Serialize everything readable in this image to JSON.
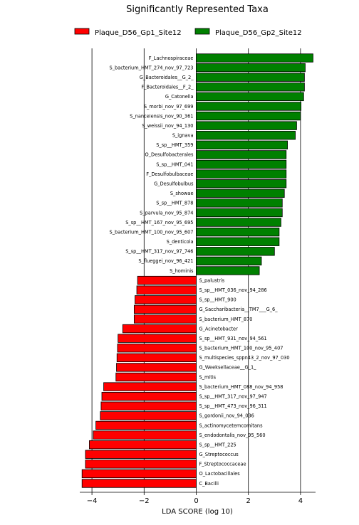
{
  "chart_data": {
    "type": "bar",
    "orientation": "horizontal",
    "title": "Significantly Represented Taxa",
    "xlabel": "LDA SCORE (log 10)",
    "ylabel": "",
    "xlim": [
      -4.5,
      4.5
    ],
    "xticks": [
      -4,
      -2,
      0,
      2,
      4
    ],
    "grid": "vertical lines at x ticks",
    "legend_position": "top",
    "series": [
      {
        "name": "Plaque_D56_Gp1_Site12",
        "color": "#ff0000",
        "categories": [
          "S_palustris",
          "S_sp__HMT_036_nov_94_286",
          "S_sp__HMT_900",
          "G_Saccharibacteria__TM7___G_6_",
          "S_bacterium_HMT_870",
          "G_Acinetobacter",
          "S_sp__HMT_931_nov_94_561",
          "S_bacterium_HMT_100_nov_95_407",
          "S_multispecies_sppn43_2_nov_97_030",
          "G_Weeksellaceae__G_1_",
          "S_mitis",
          "S_bacterium_HMT_088_nov_94_958",
          "S_sp__HMT_317_nov_97_947",
          "S_sp__HMT_473_nov_96_311",
          "S_gordonii_nov_94_036",
          "S_actinomycetemcomitans",
          "S_endodontalis_nov_95_560",
          "S_sp__HMT_225",
          "G_Streptococcus",
          "F_Streptococcaceae",
          "O_Lactobacillales",
          "C_Bacilli"
        ],
        "values": [
          -2.25,
          -2.28,
          -2.35,
          -2.38,
          -2.38,
          -2.82,
          -3.0,
          -3.02,
          -3.04,
          -3.06,
          -3.08,
          -3.55,
          -3.62,
          -3.65,
          -3.68,
          -3.85,
          -3.95,
          -4.1,
          -4.25,
          -4.25,
          -4.38,
          -4.38
        ]
      },
      {
        "name": "Plaque_D56_Gp2_Site12",
        "color": "#008000",
        "categories": [
          "F_Lachnospiraceae",
          "S_bacterium_HMT_274_nov_97_723",
          "G_Bacteroidales__G_2_",
          "F_Bacteroidales__F_2_",
          "G_Catonella",
          "S_morbi_nov_97_699",
          "S_nanceiensis_nov_90_361",
          "S_weissii_nov_94_130",
          "S_ignava",
          "S_sp__HMT_359",
          "O_Desulfobacterales",
          "S_sp__HMT_041",
          "F_Desulfobulbaceae",
          "G_Desulfobulbus",
          "S_showae",
          "S_sp__HMT_878",
          "S_parvula_nov_95_874",
          "S_sp__HMT_167_nov_95_695",
          "S_bacterium_HMT_100_nov_95_607",
          "S_denticola",
          "S_sp__HMT_317_nov_97_746",
          "S_flueggei_nov_96_421",
          "S_hominis"
        ],
        "values": [
          4.48,
          4.18,
          4.15,
          4.15,
          4.12,
          4.02,
          4.0,
          3.85,
          3.8,
          3.5,
          3.45,
          3.45,
          3.45,
          3.45,
          3.38,
          3.3,
          3.3,
          3.25,
          3.18,
          3.18,
          3.0,
          2.5,
          2.42
        ]
      }
    ],
    "bar_order_top_to_bottom": [
      "F_Lachnospiraceae",
      "S_bacterium_HMT_274_nov_97_723",
      "G_Bacteroidales__G_2_",
      "F_Bacteroidales__F_2_",
      "G_Catonella",
      "S_morbi_nov_97_699",
      "S_nanceiensis_nov_90_361",
      "S_weissii_nov_94_130",
      "S_ignava",
      "S_sp__HMT_359",
      "O_Desulfobacterales",
      "S_sp__HMT_041",
      "F_Desulfobulbaceae",
      "G_Desulfobulbus",
      "S_showae",
      "S_sp__HMT_878",
      "S_parvula_nov_95_874",
      "S_sp__HMT_167_nov_95_695",
      "S_bacterium_HMT_100_nov_95_607",
      "S_denticola",
      "S_sp__HMT_317_nov_97_746",
      "S_flueggei_nov_96_421",
      "S_hominis",
      "S_palustris",
      "S_sp__HMT_036_nov_94_286",
      "S_sp__HMT_900",
      "G_Saccharibacteria__TM7___G_6_",
      "S_bacterium_HMT_870",
      "G_Acinetobacter",
      "S_sp__HMT_931_nov_94_561",
      "S_bacterium_HMT_100_nov_95_407",
      "S_multispecies_sppn43_2_nov_97_030",
      "G_Weeksellaceae__G_1_",
      "S_mitis",
      "S_bacterium_HMT_088_nov_94_958",
      "S_sp__HMT_317_nov_97_947",
      "S_sp__HMT_473_nov_96_311",
      "S_gordonii_nov_94_036",
      "S_actinomycetemcomitans",
      "S_endodontalis_nov_95_560",
      "S_sp__HMT_225",
      "G_Streptococcus",
      "F_Streptococcaceae",
      "O_Lactobacillales",
      "C_Bacilli"
    ]
  }
}
